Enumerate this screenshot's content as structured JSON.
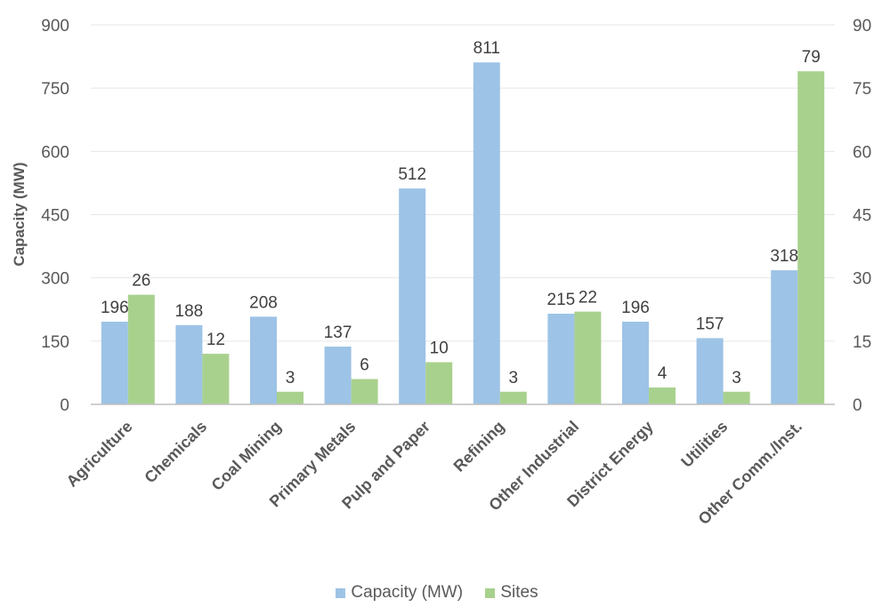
{
  "chart_data": {
    "type": "bar",
    "categories": [
      "Agriculture",
      "Chemicals",
      "Coal Mining",
      "Primary Metals",
      "Pulp and Paper",
      "Refining",
      "Other Industrial",
      "District Energy",
      "Utilities",
      "Other Comm./Inst."
    ],
    "series": [
      {
        "name": "Capacity (MW)",
        "values": [
          196,
          188,
          208,
          137,
          512,
          811,
          215,
          196,
          157,
          318
        ],
        "color": "#9dc3e6",
        "axis": "left"
      },
      {
        "name": "Sites",
        "values": [
          26,
          12,
          3,
          6,
          10,
          3,
          22,
          4,
          3,
          79
        ],
        "color": "#a9d18e",
        "axis": "right"
      }
    ],
    "ylabel": "Capacity (MW)",
    "ylim": [
      0,
      900
    ],
    "yticks": [
      "0",
      "150",
      "300",
      "450",
      "600",
      "750",
      "900"
    ],
    "y2lim": [
      0,
      90
    ],
    "y2ticks": [
      "0",
      "15",
      "30",
      "45",
      "60",
      "75",
      "90"
    ],
    "grid": true,
    "legend_position": "bottom"
  }
}
